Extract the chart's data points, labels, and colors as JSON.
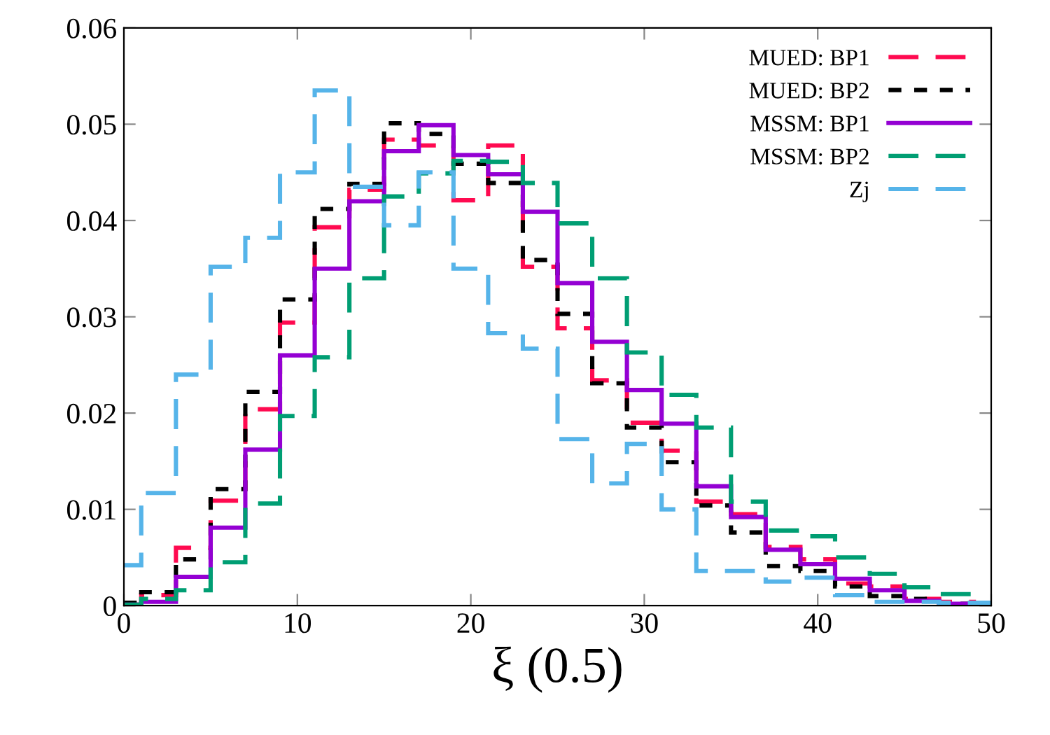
{
  "chart_data": {
    "type": "histogram",
    "xlabel": "ξ (0.5)",
    "bins": [
      0,
      1,
      3,
      5,
      7,
      9,
      11,
      13,
      15,
      17,
      19,
      21,
      23,
      25,
      27,
      29,
      31,
      33,
      35,
      37,
      39,
      41,
      43,
      45,
      47,
      49,
      50
    ],
    "series": [
      {
        "name": "MUED: BP1",
        "color": "#ff0a50",
        "line_style": "dashed",
        "values": [
          0.0001,
          0.0011,
          0.006,
          0.0109,
          0.0204,
          0.0294,
          0.0393,
          0.0432,
          0.0484,
          0.0478,
          0.0421,
          0.0478,
          0.0352,
          0.0288,
          0.0234,
          0.019,
          0.0161,
          0.0108,
          0.0095,
          0.0061,
          0.0048,
          0.0023,
          0.002,
          0.0007,
          0.0004,
          0.0002
        ]
      },
      {
        "name": "MUED: BP2",
        "color": "#000000",
        "line_style": "dotted",
        "values": [
          0.0003,
          0.0014,
          0.0048,
          0.0121,
          0.0222,
          0.0318,
          0.0412,
          0.0438,
          0.0501,
          0.049,
          0.0459,
          0.0439,
          0.0359,
          0.0303,
          0.0231,
          0.0185,
          0.0149,
          0.0104,
          0.0076,
          0.0041,
          0.0036,
          0.002,
          0.001,
          0.0007,
          0.0002,
          0.0001
        ]
      },
      {
        "name": "MSSM: BP1",
        "color": "#9400d3",
        "line_style": "solid",
        "values": [
          0.0001,
          0.0004,
          0.003,
          0.0081,
          0.0162,
          0.026,
          0.035,
          0.042,
          0.0472,
          0.0499,
          0.0468,
          0.0448,
          0.0409,
          0.0335,
          0.0274,
          0.0224,
          0.0189,
          0.0124,
          0.0092,
          0.0058,
          0.0043,
          0.0028,
          0.0016,
          0.0005,
          0.0002,
          0.0001
        ]
      },
      {
        "name": "MSSM: BP2",
        "color": "#009e73",
        "line_style": "dashed",
        "values": [
          0.0001,
          0.0007,
          0.0016,
          0.0045,
          0.0106,
          0.0197,
          0.0258,
          0.034,
          0.0425,
          0.0449,
          0.0462,
          0.0461,
          0.0439,
          0.0397,
          0.034,
          0.0263,
          0.0219,
          0.0185,
          0.0108,
          0.0078,
          0.0072,
          0.005,
          0.0033,
          0.0019,
          0.0012,
          0.0002
        ]
      },
      {
        "name": "Zj",
        "color": "#56b4e9",
        "line_style": "dashed",
        "values": [
          0.0042,
          0.0117,
          0.024,
          0.0352,
          0.0382,
          0.045,
          0.0535,
          0.0435,
          0.0395,
          0.045,
          0.035,
          0.0283,
          0.0267,
          0.0173,
          0.0127,
          0.0168,
          0.01,
          0.0036,
          0.0036,
          0.0025,
          0.0029,
          0.0011,
          0.0004,
          0.0004,
          0.0003,
          0.0003
        ]
      }
    ],
    "xlim": [
      0,
      50
    ],
    "ylim": [
      0,
      0.06
    ],
    "xticks": [
      0,
      10,
      20,
      30,
      40,
      50
    ],
    "yticks": [
      0,
      0.01,
      0.02,
      0.03,
      0.04,
      0.05,
      0.06
    ],
    "legend": "top right",
    "grid": false
  }
}
